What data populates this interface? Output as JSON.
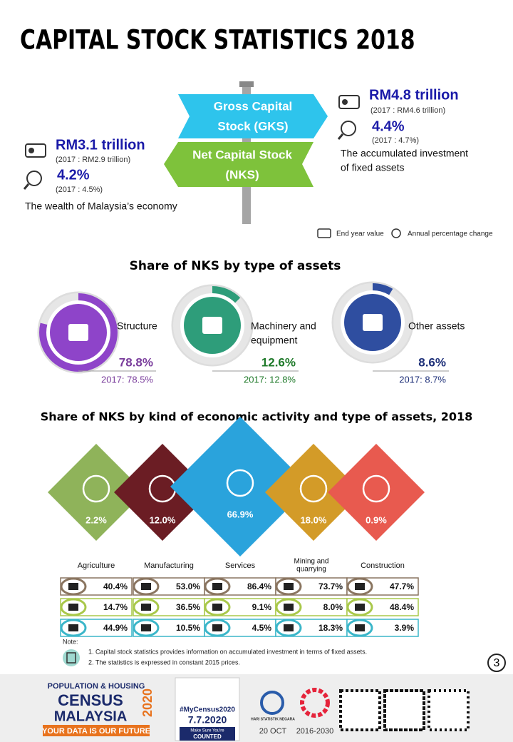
{
  "header": {
    "title": "CAPITAL STOCK STATISTICS 2018"
  },
  "gks": {
    "sign": [
      "Gross Capital",
      "Stock (GKS)"
    ],
    "value": "RM4.8 trillion",
    "value_2017": "(2017 : RM4.6 trillion)",
    "change": "4.4%",
    "change_2017": "(2017 :  4.7%)",
    "description": [
      "The accumulated investment",
      "of fixed assets"
    ]
  },
  "nks": {
    "sign": [
      "Net Capital Stock",
      "(NKS)"
    ],
    "value": "RM3.1 trillion",
    "value_2017": "(2017 : RM2.9 trillion)",
    "change": "4.2%",
    "change_2017": "(2017 :  4.5%)",
    "description": [
      "The wealth of Malaysia’s economy"
    ]
  },
  "legend": [
    "End year value",
    "Annual percentage change"
  ],
  "assets_section": {
    "title": "Share of NKS by type of assets",
    "items": [
      {
        "name": [
          "Structure"
        ],
        "value": 78.8,
        "label": "78.8%",
        "prev": "2017: 78.5%"
      },
      {
        "name": [
          "Machinery and",
          "equipment"
        ],
        "value": 12.6,
        "label": "12.6%",
        "prev": "2017: 12.8%"
      },
      {
        "name": [
          "Other assets"
        ],
        "value": 8.6,
        "label": "8.6%",
        "prev": "2017: 8.7%"
      }
    ]
  },
  "activity_section": {
    "title": "Share of NKS by kind of economic activity and type of assets, 2018",
    "activities": [
      {
        "name": [
          "Agriculture"
        ],
        "share": "2.2%",
        "structure": "40.4%",
        "machinery": "14.7%",
        "other": "44.9%"
      },
      {
        "name": [
          "Manufacturing"
        ],
        "share": "12.0%",
        "structure": "53.0%",
        "machinery": "36.5%",
        "other": "10.5%"
      },
      {
        "name": [
          "Services"
        ],
        "share": "66.9%",
        "structure": "86.4%",
        "machinery": "9.1%",
        "other": "4.5%"
      },
      {
        "name": [
          "Mining and",
          "quarrying"
        ],
        "share": "18.0%",
        "structure": "73.7%",
        "machinery": "8.0%",
        "other": "18.3%"
      },
      {
        "name": [
          "Construction"
        ],
        "share": "0.9%",
        "structure": "47.7%",
        "machinery": "48.4%",
        "other": "3.9%"
      }
    ]
  },
  "note": {
    "title": "Note:",
    "items": [
      "1. Capital stock statistics provides information on accumulated investment in terms of fixed assets.",
      "2. The statistics is expressed in constant 2015 prices."
    ]
  },
  "page_number": "3",
  "footer": {
    "census_top": "POPULATION & HOUSING",
    "census_main": [
      "CENSUS",
      "MALAYSIA"
    ],
    "census_year": "2020",
    "slogan": "YOUR DATA IS OUR FUTURE",
    "hashtag": "#MyCensus2020",
    "date": "7.7.2020",
    "counted": [
      "Make Sure You're",
      "COUNTED"
    ],
    "stat_day": "HARI STATISTIK NEGARA",
    "stat_date": "20 OCT",
    "sdg": "2016-2030"
  }
}
